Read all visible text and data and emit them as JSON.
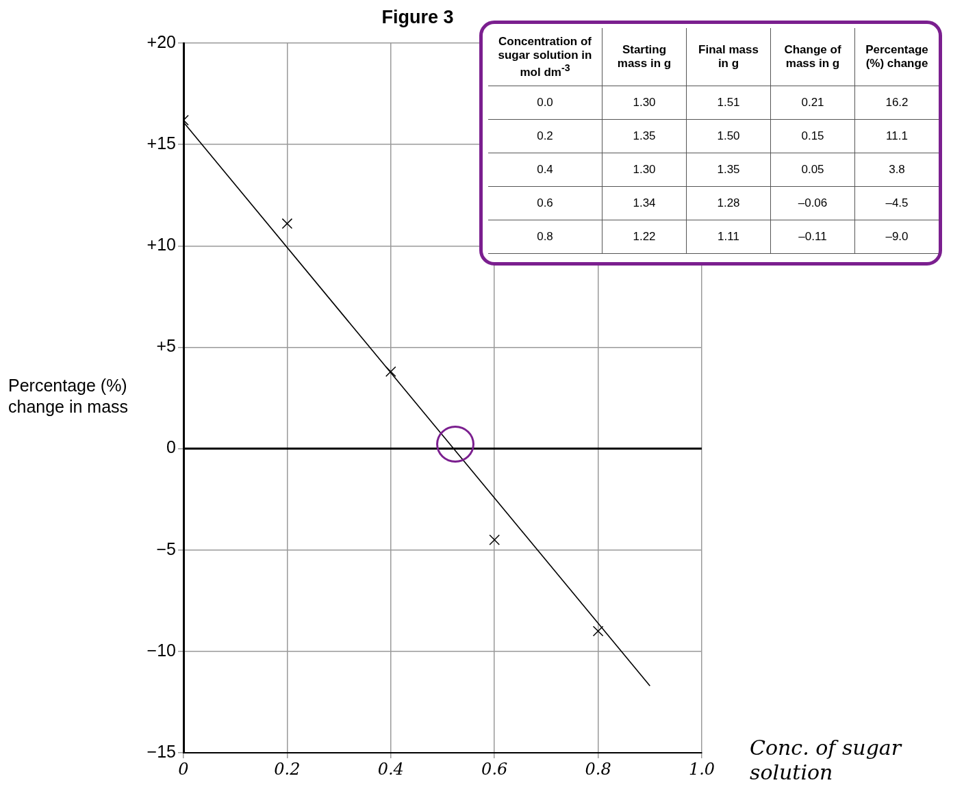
{
  "chart_data": {
    "type": "scatter",
    "title": "Figure 3",
    "xlabel": "Conc. of sugar solution",
    "ylabel": "Percentage (%) change in mass",
    "xlim": [
      0,
      1.0
    ],
    "ylim": [
      -15,
      20
    ],
    "xticks": [
      {
        "value": 0,
        "label": "0"
      },
      {
        "value": 0.2,
        "label": "0.2"
      },
      {
        "value": 0.4,
        "label": "0.4"
      },
      {
        "value": 0.6,
        "label": "0.6"
      },
      {
        "value": 0.8,
        "label": "0.8"
      },
      {
        "value": 1.0,
        "label": "1.0"
      }
    ],
    "yticks": [
      {
        "value": -15,
        "label": "−15"
      },
      {
        "value": -10,
        "label": "−10"
      },
      {
        "value": -5,
        "label": "−5"
      },
      {
        "value": 0,
        "label": "0"
      },
      {
        "value": 5,
        "label": "+5"
      },
      {
        "value": 10,
        "label": "+10"
      },
      {
        "value": 15,
        "label": "+15"
      },
      {
        "value": 20,
        "label": "+20"
      }
    ],
    "grid": true,
    "ref_lines": [
      {
        "axis": "y",
        "value": 0,
        "color": "#000000"
      }
    ],
    "series": [
      {
        "type": "scatter",
        "x": [
          0,
          0.2,
          0.4,
          0.6,
          0.8
        ],
        "values": [
          16.2,
          11.1,
          3.8,
          -4.5,
          -9.0
        ],
        "color": "#000000",
        "marker": "cross"
      },
      {
        "type": "line",
        "x": [
          0,
          0.9
        ],
        "values": [
          16.1,
          -11.7
        ],
        "color": "#000000",
        "marker": "none",
        "line_style": "solid"
      }
    ],
    "annotations": [
      "Concentration of sugar solution in mol dm$^{-3}$",
      "Starting mass in g",
      "Final mass in g",
      "Change of mass in g",
      "Percentage (%) change",
      "0.0",
      "1.30",
      "1.51",
      "0.21",
      "16.2",
      "0.2",
      "1.35",
      "1.50",
      "0.15",
      "11.1",
      "0.4",
      "1.30",
      "1.35",
      "0.05",
      "3.8",
      "0.6",
      "1.34",
      "1.28",
      "–0.06",
      "–4.5",
      "0.8",
      "1.22",
      "1.11",
      "–0.11",
      "–9.0"
    ]
  }
}
